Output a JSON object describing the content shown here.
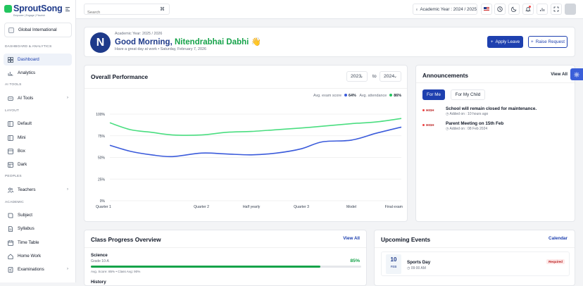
{
  "brand": {
    "name": "SproutSong",
    "tagline": "Empower | Engage | Flourish"
  },
  "school": {
    "name": "Global International"
  },
  "sidebar": {
    "sections": [
      "DASHBOARD & ANALYTICS",
      "AI TOOLS",
      "LAYOUT",
      "PEOPLES",
      "ACADEMIC"
    ],
    "items": [
      {
        "label": "Dashboard",
        "icon": "grid-icon",
        "active": true
      },
      {
        "label": "Analytics",
        "icon": "chart-icon"
      },
      {
        "label": "AI Tools",
        "icon": "sparkle-icon",
        "chevron": true
      },
      {
        "label": "Default",
        "icon": "layout-icon"
      },
      {
        "label": "Mini",
        "icon": "layout-icon"
      },
      {
        "label": "Box",
        "icon": "layout-icon"
      },
      {
        "label": "Dark",
        "icon": "layout-icon"
      },
      {
        "label": "Teachers",
        "icon": "users-icon",
        "chevron": true
      },
      {
        "label": "Subject",
        "icon": "book-icon"
      },
      {
        "label": "Syllabus",
        "icon": "document-icon"
      },
      {
        "label": "Time Table",
        "icon": "table-icon"
      },
      {
        "label": "Home Work",
        "icon": "homework-icon"
      },
      {
        "label": "Examinations",
        "icon": "exam-icon",
        "chevron": true
      }
    ]
  },
  "header": {
    "search_placeholder": "Search",
    "academic_year": "Academic Year : 2024 / 2025"
  },
  "welcome": {
    "initial": "N",
    "academic_year": "Academic Year: 2025 / 2026",
    "greeting": "Good Morning, ",
    "name": "Nitendrabhai Dabhi",
    "emoji": "👋",
    "subtitle": "Have a great day at work • Saturday, February 7, 2026",
    "apply_leave": "Apply Leave",
    "raise_request": "Raise Request"
  },
  "performance": {
    "title": "Overall Performance",
    "from_year": "2023",
    "to_label": "to",
    "to_year": "2024",
    "legend": [
      {
        "label": "Avg. exam score",
        "value": "64%",
        "color": "#3b5bdb"
      },
      {
        "label": "Avg. attendance",
        "value": "86%",
        "color": "#22c55e"
      }
    ]
  },
  "chart_data": {
    "type": "line",
    "categories": [
      "Quarter 1",
      "Quarter 2",
      "Half yearly",
      "Quarter 3",
      "Model",
      "Final exam"
    ],
    "x_positions": [
      0,
      2.2,
      3.4,
      4.6,
      5.8,
      7.0
    ],
    "y_ticks": [
      "0%",
      "25%",
      "50%",
      "75%",
      "100%"
    ],
    "ylim": [
      0,
      100
    ],
    "series": [
      {
        "name": "Avg. exam score",
        "color": "#3b5bdb",
        "x": [
          0,
          0.5,
          1.0,
          1.5,
          2.2,
          2.8,
          3.4,
          4.0,
          4.6,
          5.1,
          5.8,
          6.4,
          7.0
        ],
        "values": [
          64,
          57,
          53,
          51,
          55,
          54,
          53,
          55,
          60,
          68,
          70,
          78,
          85
        ]
      },
      {
        "name": "Avg. attendance",
        "color": "#4ade80",
        "x": [
          0,
          0.5,
          1.0,
          1.5,
          2.2,
          2.8,
          3.4,
          4.0,
          4.6,
          5.1,
          5.8,
          6.4,
          7.0
        ],
        "values": [
          90,
          82,
          79,
          76,
          76,
          79,
          80,
          82,
          84,
          86,
          89,
          91,
          95
        ]
      }
    ]
  },
  "announcements": {
    "title": "Announcements",
    "view_all": "View All",
    "tab_me": "For Me",
    "tab_child": "For My Child",
    "items": [
      {
        "priority": "HIGH",
        "title": "School will remain closed for maintenance.",
        "date": "Added on : 10 hours ago"
      },
      {
        "priority": "HIGH",
        "title": "Parent Meeting on 15th Feb",
        "date": "Added on : 08 Feb 2024"
      }
    ]
  },
  "class_progress": {
    "title": "Class Progress Overview",
    "view_all": "View All",
    "subject": "Science",
    "grade": "Grade 10-A",
    "percent": "85%",
    "progress": 0.85,
    "scores": "Avg. Score: 85% • Class Avg: 90%",
    "next_subject": "History"
  },
  "events": {
    "title": "Upcoming Events",
    "calendar": "Calendar",
    "day": "10",
    "month": "FEB",
    "name": "Sports Day",
    "time": "09:00 AM",
    "badge": "Required"
  }
}
